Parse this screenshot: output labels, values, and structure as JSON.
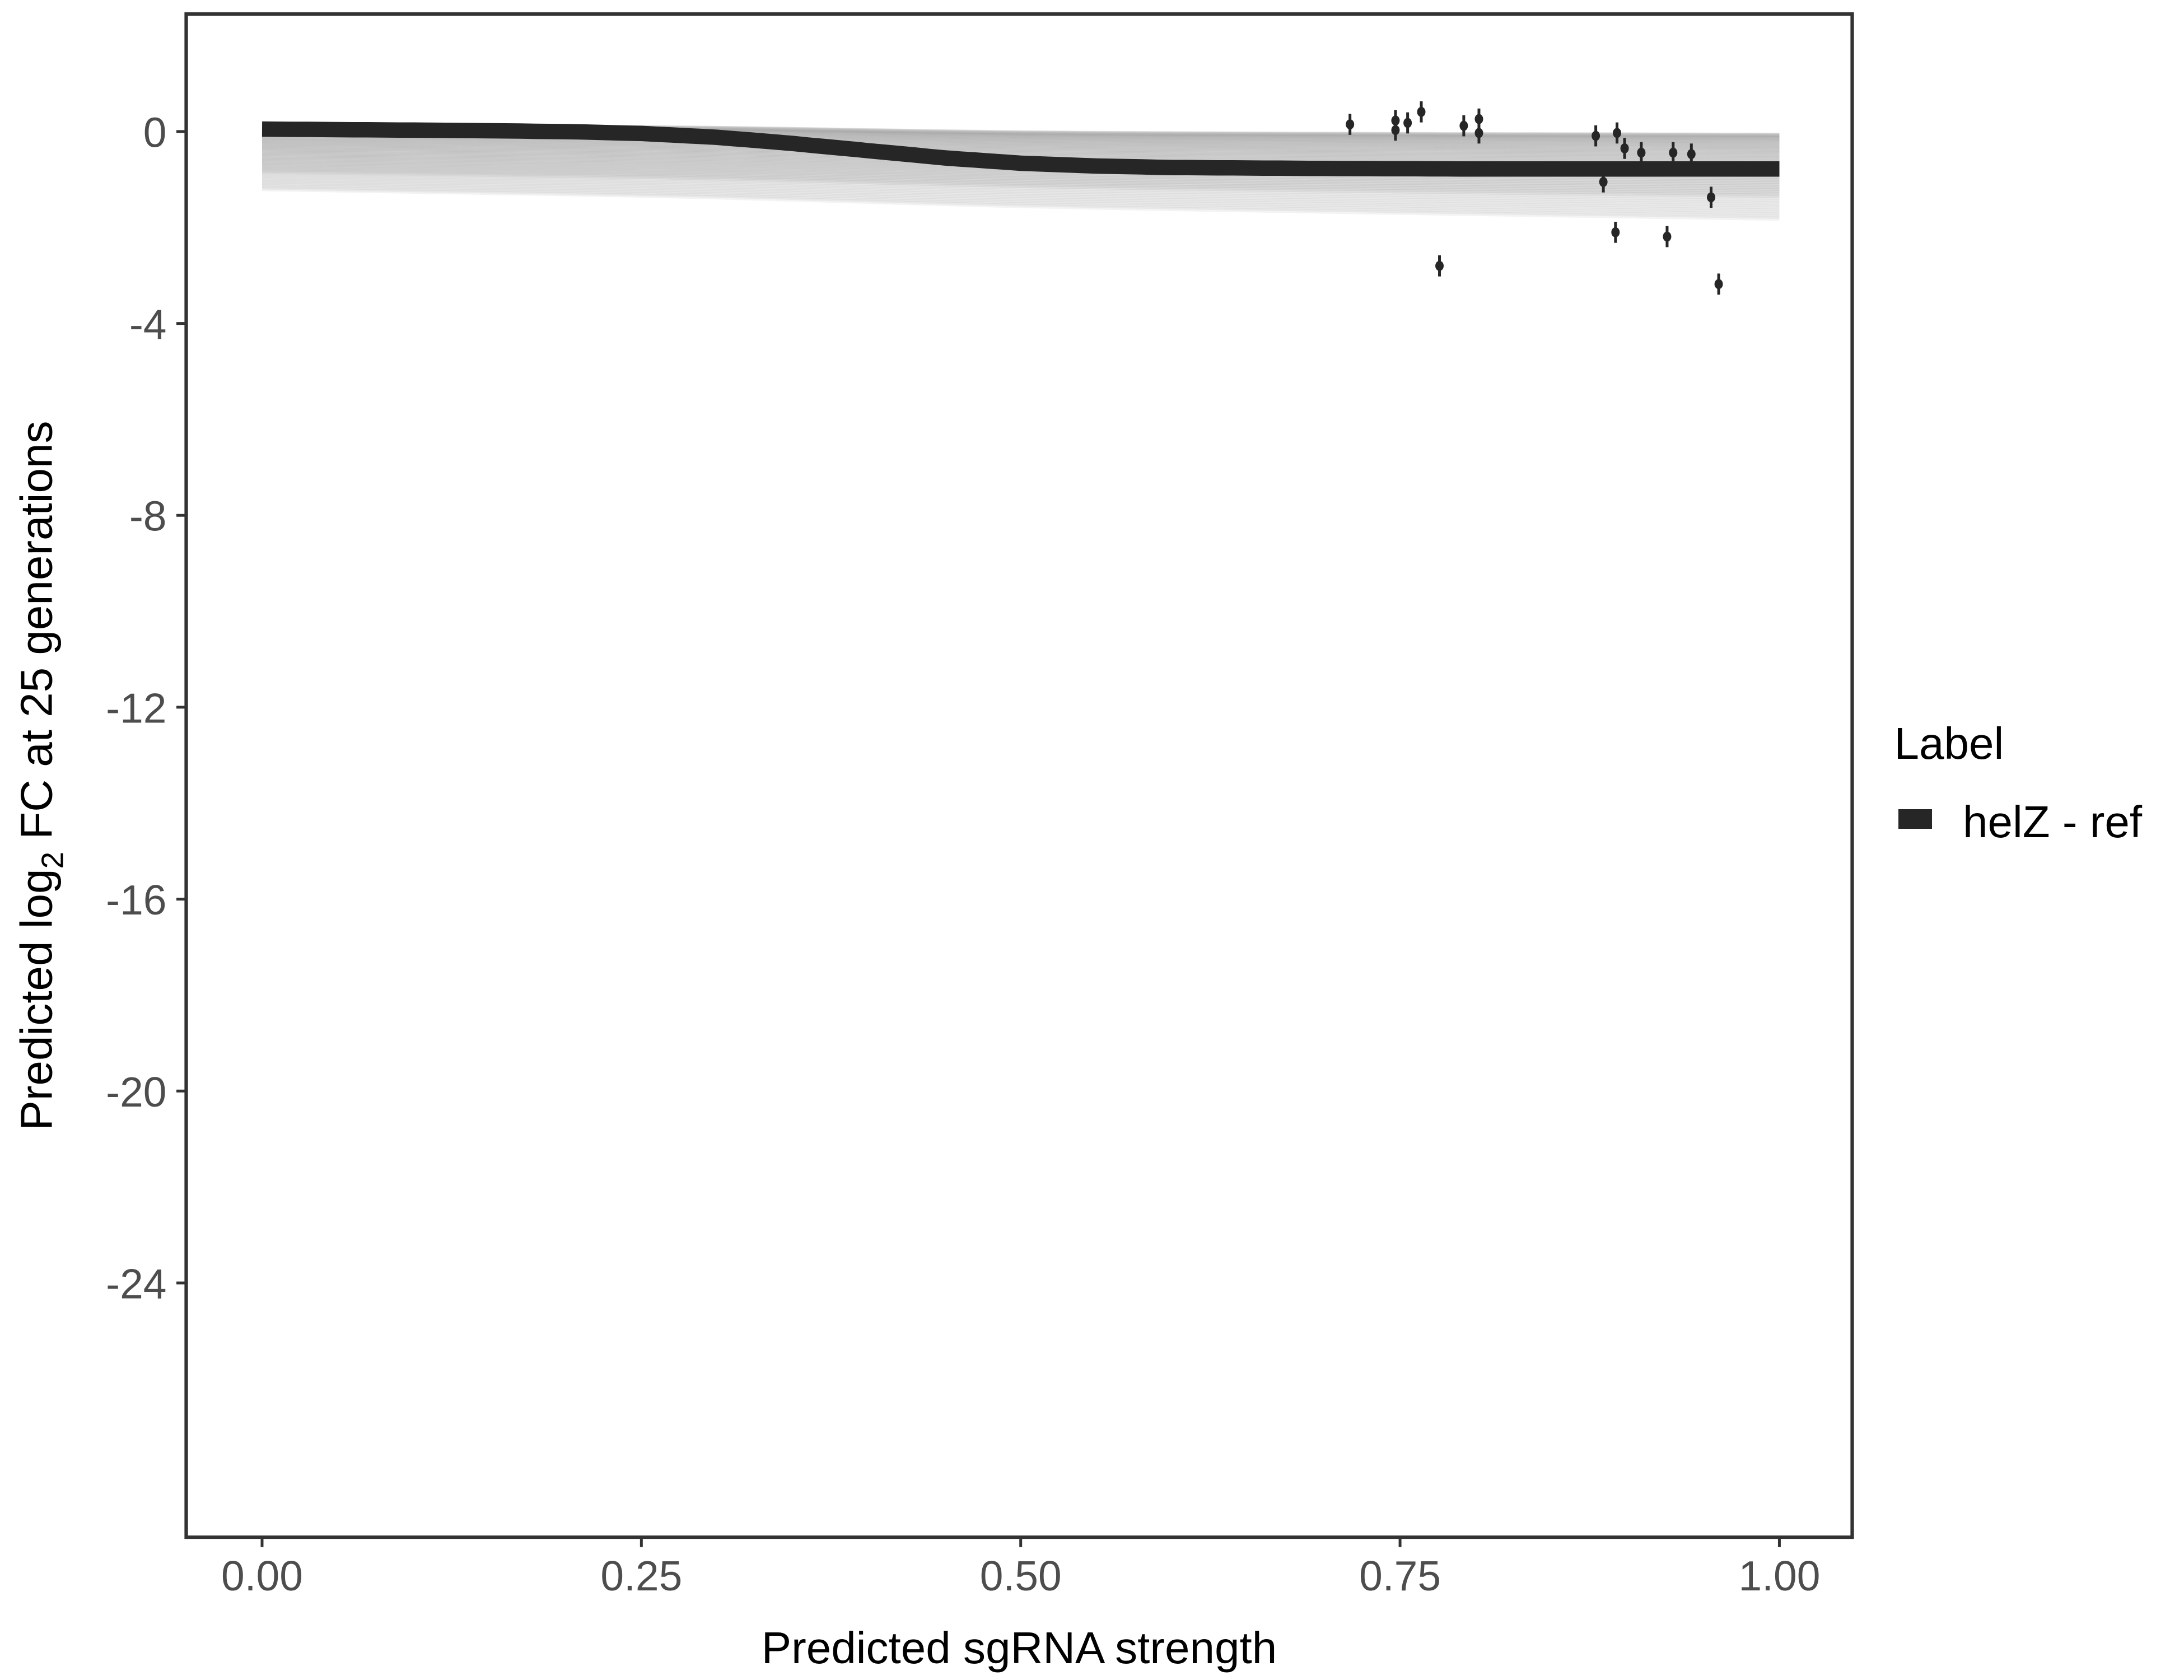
{
  "chart_data": {
    "type": "line",
    "xlabel": "Predicted sgRNA strength",
    "ylabel_parts": {
      "pre": "Predicted  log",
      "sub": "2",
      "post": " FC at 25 generations"
    },
    "xlim": [
      -0.05,
      1.048
    ],
    "ylim": [
      -29.3,
      2.45
    ],
    "x_ticks": [
      0,
      0.25,
      0.5,
      0.75,
      1
    ],
    "x_tick_labels": [
      "0.00",
      "0.25",
      "0.50",
      "0.75",
      "1.00"
    ],
    "y_ticks": [
      0,
      -4,
      -8,
      -12,
      -16,
      -20,
      -24
    ],
    "y_tick_labels": [
      "0",
      "-4",
      "-8",
      "-12",
      "-16",
      "-20",
      "-24"
    ],
    "grid": false,
    "legend": {
      "title": "Label",
      "placement": "right",
      "entries": [
        {
          "name": "helZ - ref",
          "color": "#262626"
        }
      ]
    },
    "fit_line": {
      "name": "helZ - ref",
      "color": "#262626",
      "x": [
        0,
        0.1,
        0.2,
        0.25,
        0.3,
        0.35,
        0.4,
        0.45,
        0.5,
        0.55,
        0.6,
        0.7,
        0.8,
        0.9,
        1.0
      ],
      "y": [
        0.05,
        0.03,
        0.0,
        -0.04,
        -0.12,
        -0.25,
        -0.4,
        -0.55,
        -0.66,
        -0.72,
        -0.75,
        -0.77,
        -0.78,
        -0.78,
        -0.78
      ]
    },
    "ribbon": {
      "color": "#a0a0a0",
      "upper_at_x0": 0.12,
      "lower_at_x0": -1.2,
      "upper_at_x1": 0.05,
      "lower_at_x1": -1.7
    },
    "points": {
      "color": "#262626",
      "x": [
        0.717,
        0.747,
        0.747,
        0.755,
        0.764,
        0.776,
        0.792,
        0.802,
        0.802,
        0.879,
        0.884,
        0.892,
        0.893,
        0.898,
        0.909,
        0.926,
        0.93,
        0.942,
        0.955,
        0.96
      ],
      "y": [
        0.15,
        0.23,
        0.03,
        0.18,
        0.41,
        -2.8,
        0.12,
        0.26,
        -0.03,
        -0.09,
        -1.05,
        -2.1,
        -0.03,
        -0.35,
        -0.44,
        -2.19,
        -0.44,
        -0.47,
        -1.37,
        -3.18
      ],
      "error": 0.22
    }
  }
}
